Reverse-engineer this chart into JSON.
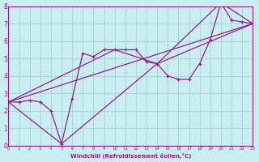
{
  "xlabel": "Windchill (Refroidissement éolien,°C)",
  "bg_color": "#c8eef0",
  "line_color": "#9b1a8a",
  "grid_color": "#b0d8dc",
  "xlim": [
    0,
    23
  ],
  "ylim": [
    0,
    8
  ],
  "xticks": [
    0,
    1,
    2,
    3,
    4,
    5,
    6,
    7,
    8,
    9,
    10,
    11,
    12,
    13,
    14,
    15,
    16,
    17,
    18,
    19,
    20,
    21,
    22,
    23
  ],
  "yticks": [
    0,
    1,
    2,
    3,
    4,
    5,
    6,
    7,
    8
  ],
  "series": [
    {
      "x": [
        0,
        1,
        2,
        3,
        4,
        5,
        6,
        7,
        8,
        9,
        10,
        11,
        12,
        13,
        14,
        15,
        16,
        17,
        18,
        19,
        20,
        21,
        22,
        23
      ],
      "y": [
        2.5,
        2.5,
        2.6,
        2.5,
        2.0,
        0.1,
        2.7,
        5.3,
        5.1,
        5.5,
        5.5,
        5.5,
        5.5,
        4.8,
        4.7,
        4.0,
        3.8,
        3.8,
        4.7,
        6.1,
        8.2,
        7.2,
        7.1,
        7.0
      ]
    },
    {
      "x": [
        0,
        5,
        14,
        20,
        23
      ],
      "y": [
        2.5,
        0.1,
        4.7,
        8.2,
        7.0
      ]
    },
    {
      "x": [
        0,
        10,
        14,
        23
      ],
      "y": [
        2.5,
        5.5,
        4.7,
        7.0
      ]
    },
    {
      "x": [
        0,
        23
      ],
      "y": [
        2.5,
        7.0
      ]
    }
  ]
}
